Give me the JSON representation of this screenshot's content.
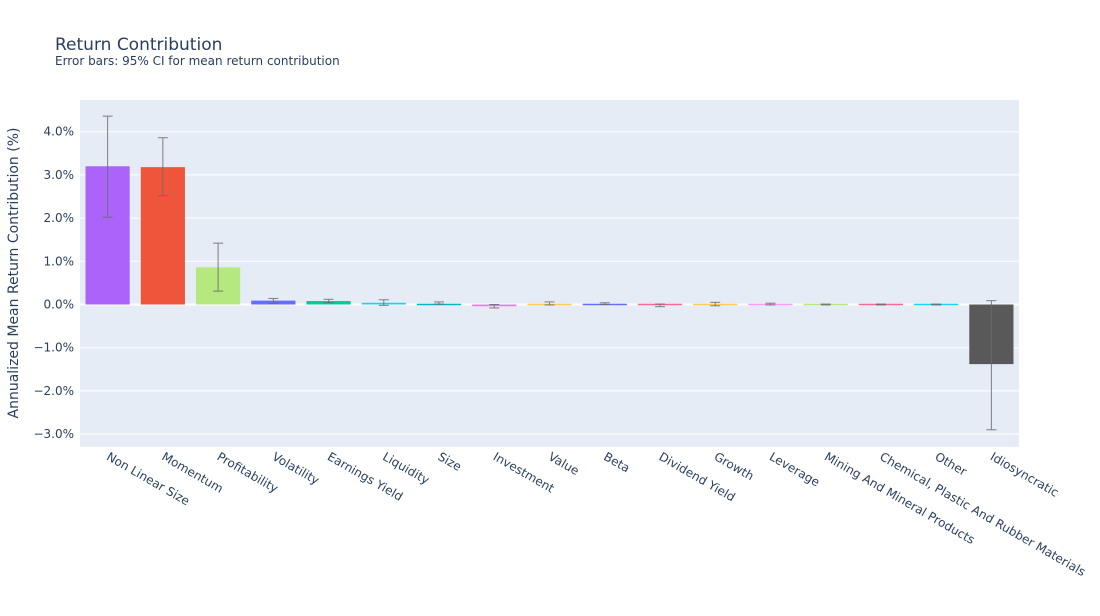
{
  "chart_data": {
    "type": "bar",
    "title": "Return Contribution",
    "subtitle": "Error bars: 95% CI for mean return contribution",
    "xlabel": "",
    "ylabel": "Annualized Mean Return Contribution (%)",
    "ylim": [
      -3.3,
      4.8
    ],
    "yticks": [
      4.0,
      3.0,
      2.0,
      1.0,
      0.0,
      -1.0,
      -2.0,
      -3.0
    ],
    "ytick_labels": [
      "4.0%",
      "3.0%",
      "2.0%",
      "1.0%",
      "0.0%",
      "−1.0%",
      "−2.0%",
      "−3.0%"
    ],
    "grid": true,
    "categories": [
      "Non Linear Size",
      "Momentum",
      "Profitability",
      "Volatility",
      "Earnings Yield",
      "Liquidity",
      "Size",
      "Investment",
      "Value",
      "Beta",
      "Dividend Yield",
      "Growth",
      "Leverage",
      "Mining And Mineral Products",
      "Chemical, Plastic And Rubber Materials",
      "Other",
      "Idiosyncratic"
    ],
    "values": [
      3.2,
      3.18,
      0.86,
      0.09,
      0.08,
      0.04,
      0.03,
      -0.04,
      0.02,
      0.02,
      -0.02,
      0.01,
      0.01,
      0.0,
      0.0,
      0.0,
      -1.38
    ],
    "error_low": [
      2.02,
      2.52,
      0.31,
      0.03,
      0.04,
      -0.02,
      0.01,
      -0.08,
      -0.01,
      0.0,
      -0.05,
      -0.03,
      -0.01,
      -0.01,
      -0.01,
      -0.01,
      -2.9
    ],
    "error_high": [
      4.36,
      3.86,
      1.42,
      0.14,
      0.12,
      0.11,
      0.06,
      0.0,
      0.06,
      0.04,
      0.01,
      0.05,
      0.03,
      0.01,
      0.01,
      0.01,
      0.09
    ],
    "colors": [
      "#ab63fa",
      "#ef553b",
      "#b6e880",
      "#636efa",
      "#00cc96",
      "#19d3f3",
      "#00b5c6",
      "#e67ee0",
      "#fecb52",
      "#636efa",
      "#ff6692",
      "#fecb52",
      "#ff97ff",
      "#b6e880",
      "#ff6692",
      "#19d3f3",
      "#595959"
    ],
    "plot_bg": "#e5ecf6",
    "error_color": "#6b6b6b"
  }
}
